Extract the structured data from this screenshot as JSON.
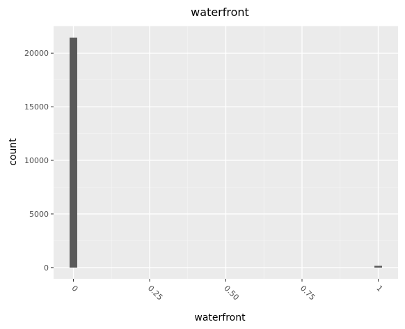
{
  "chart_data": {
    "type": "bar",
    "title": "waterfront",
    "xlabel": "waterfront",
    "ylabel": "count",
    "x_ticks": [
      "0",
      "0.25",
      "0.50",
      "0.75",
      "1"
    ],
    "x_tick_values": [
      0,
      0.25,
      0.5,
      0.75,
      1
    ],
    "y_ticks": [
      "0",
      "5000",
      "10000",
      "15000",
      "20000"
    ],
    "y_tick_values": [
      0,
      5000,
      10000,
      15000,
      20000
    ],
    "xlim": [
      -0.065,
      1.065
    ],
    "ylim": [
      -1050,
      22550
    ],
    "bins": [
      {
        "x": 0,
        "value": 21450
      },
      {
        "x": 1,
        "value": 163
      }
    ],
    "bin_width": 0.025,
    "grid": true,
    "legend": "none",
    "colors": {
      "panel": "#ebebeb",
      "grid_major": "#ffffff",
      "grid_minor": "#f5f5f5",
      "bar": "#595959",
      "tick": "#333333"
    }
  }
}
